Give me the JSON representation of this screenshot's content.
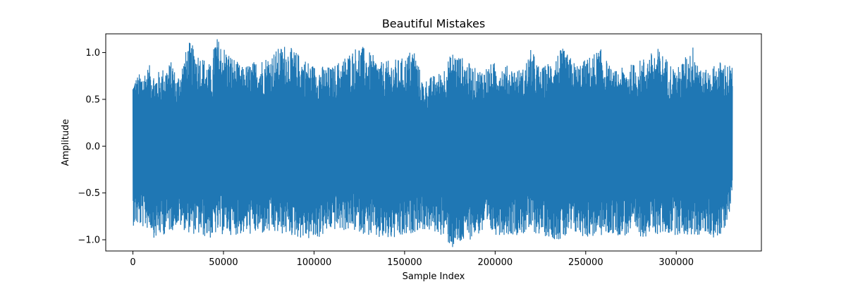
{
  "chart_data": {
    "type": "line",
    "title": "Beautiful Mistakes",
    "xlabel": "Sample Index",
    "ylabel": "Amplitude",
    "xlim": [
      -15000,
      347000
    ],
    "ylim": [
      -1.12,
      1.2
    ],
    "xticks": [
      0,
      50000,
      100000,
      150000,
      200000,
      250000,
      300000
    ],
    "yticks": [
      -1.0,
      -0.5,
      0.0,
      0.5,
      1.0
    ],
    "grid": false,
    "series": [
      {
        "color": "#1f77b4",
        "x_range": [
          0,
          331000
        ],
        "envelope": {
          "x": [
            0,
            10000,
            12000,
            22000,
            24000,
            31000,
            44000,
            45000,
            60000,
            75000,
            84000,
            100000,
            110000,
            125000,
            137000,
            150000,
            155000,
            160000,
            170000,
            177000,
            190000,
            200000,
            215000,
            220000,
            225000,
            237000,
            245000,
            250000,
            258000,
            265000,
            278000,
            290000,
            300000,
            310000,
            315000,
            325000,
            331000
          ],
          "upper": [
            0.72,
            0.88,
            0.77,
            0.92,
            0.72,
            1.12,
            0.85,
            1.2,
            0.85,
            0.98,
            1.1,
            0.87,
            0.85,
            1.1,
            0.9,
            0.95,
            1.08,
            0.7,
            0.8,
            1.03,
            0.82,
            0.9,
            0.82,
            1.05,
            0.82,
            1.05,
            0.88,
            0.93,
            1.05,
            0.8,
            0.9,
            1.05,
            0.82,
            1.1,
            0.8,
            0.92,
            0.86
          ],
          "lower": [
            -0.85,
            -0.9,
            -1.0,
            -0.9,
            -0.85,
            -0.93,
            -1.0,
            -0.95,
            -0.95,
            -0.95,
            -0.95,
            -1.02,
            -0.9,
            -0.92,
            -1.02,
            -1.0,
            -0.92,
            -0.9,
            -0.95,
            -1.12,
            -0.95,
            -0.95,
            -0.95,
            -0.93,
            -0.95,
            -1.02,
            -0.95,
            -0.98,
            -0.97,
            -0.95,
            -0.98,
            -0.95,
            -0.95,
            -0.97,
            -0.95,
            -1.0,
            -0.6
          ]
        }
      }
    ]
  }
}
